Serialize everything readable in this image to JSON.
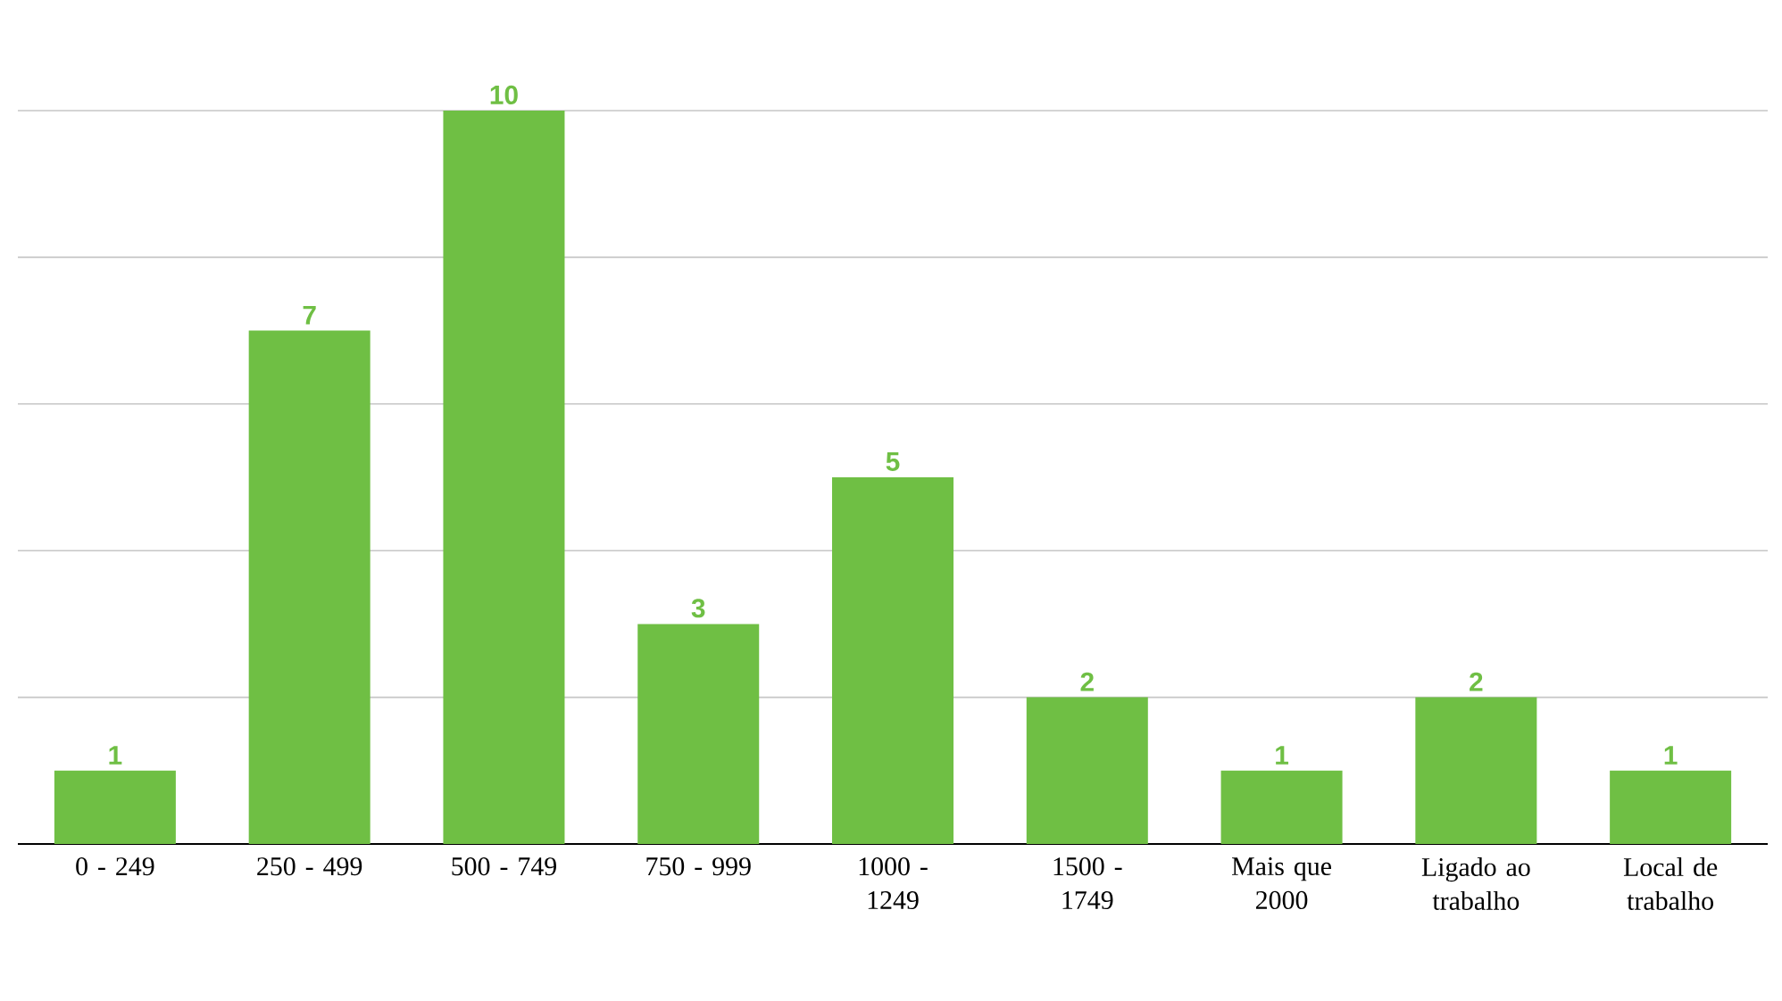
{
  "chart_data": {
    "type": "bar",
    "categories": [
      "0 - 249",
      "250 - 499",
      "500 - 749",
      "750 - 999",
      "1000 - 1249",
      "1500 - 1749",
      "Mais que 2000",
      "Ligado ao trabalho",
      "Local de trabalho"
    ],
    "values": [
      1,
      7,
      10,
      3,
      5,
      2,
      1,
      2,
      1
    ],
    "color": "#6fbf44",
    "ylim": [
      0,
      10
    ],
    "yticks": [
      {
        "value": 0,
        "label": null
      },
      {
        "value": 2,
        "label": null
      },
      {
        "value": 4,
        "label": null
      },
      {
        "value": 6,
        "label": null
      },
      {
        "value": 8,
        "label": null
      },
      {
        "value": 10,
        "label": null
      }
    ],
    "grid": "y",
    "tick_labels": "x",
    "data_labels": true
  }
}
